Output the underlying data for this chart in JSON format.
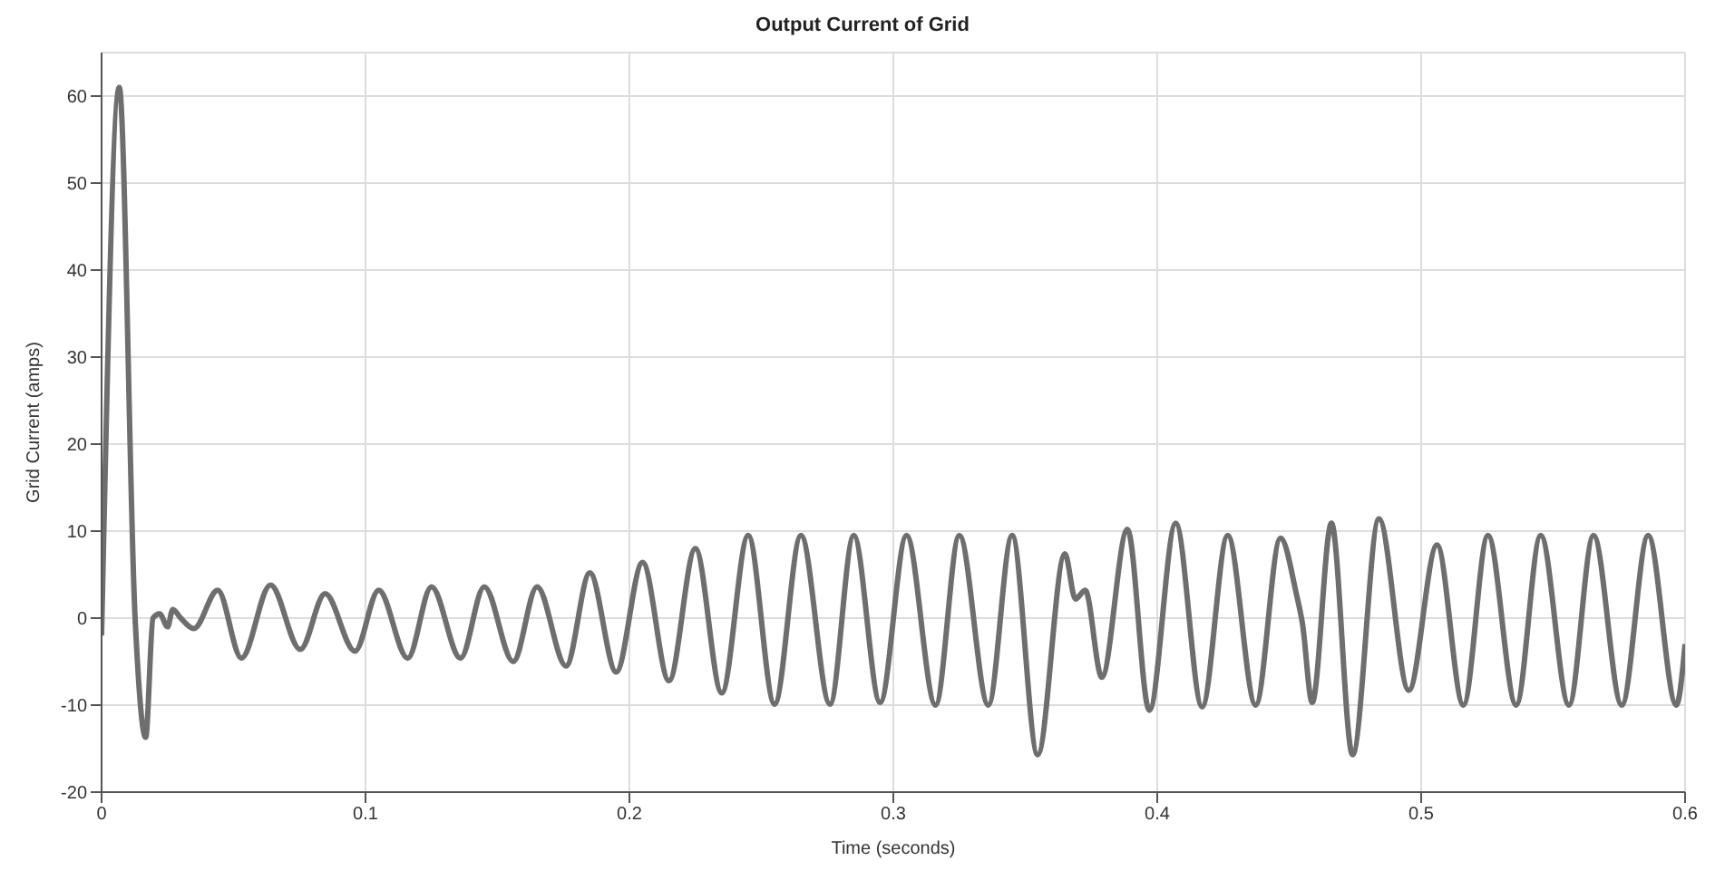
{
  "chart_data": {
    "type": "line",
    "title": "Output Current of Grid",
    "xlabel": "Time (seconds)",
    "ylabel": "Grid Current (amps)",
    "xlim": [
      0,
      0.6
    ],
    "xticks": [
      0,
      0.1,
      0.2,
      0.3,
      0.4,
      0.5,
      0.6
    ],
    "ylim": [
      -20,
      65
    ],
    "yticks": [
      -20,
      -10,
      0,
      10,
      20,
      30,
      40,
      50,
      60
    ],
    "grid": true,
    "series": [
      {
        "color": "#6e6e6e",
        "x": [
          0,
          0.0067,
          0.0127,
          0.0167,
          0.0195,
          0.022,
          0.025,
          0.027,
          0.03,
          0.035,
          0.044,
          0.053,
          0.064,
          0.0753,
          0.0847,
          0.096,
          0.105,
          0.116,
          0.125,
          0.136,
          0.145,
          0.156,
          0.165,
          0.176,
          0.185,
          0.195,
          0.205,
          0.215,
          0.225,
          0.235,
          0.245,
          0.255,
          0.265,
          0.276,
          0.285,
          0.295,
          0.305,
          0.316,
          0.325,
          0.336,
          0.345,
          0.3547,
          0.365,
          0.369,
          0.3727,
          0.379,
          0.3887,
          0.397,
          0.407,
          0.417,
          0.4267,
          0.4373,
          0.4467,
          0.4527,
          0.455,
          0.4587,
          0.466,
          0.474,
          0.484,
          0.4953,
          0.506,
          0.516,
          0.5253,
          0.536,
          0.5453,
          0.556,
          0.5653,
          0.576,
          0.586,
          0.5967,
          0.6
        ],
        "values": [
          -2,
          61,
          0,
          -13.7,
          0,
          0.5,
          -1,
          1,
          0,
          -1.2,
          3.2,
          -4.6,
          3.8,
          -3.6,
          2.8,
          -3.8,
          3.2,
          -4.6,
          3.6,
          -4.6,
          3.6,
          -5,
          3.6,
          -5.5,
          5.2,
          -6.2,
          6.4,
          -7.2,
          8,
          -8.6,
          9.5,
          -9.9,
          9.5,
          -9.9,
          9.5,
          -9.7,
          9.5,
          -10,
          9.5,
          -10,
          9.5,
          -15.7,
          7.4,
          2.2,
          3.2,
          -6.8,
          10.2,
          -10.6,
          10.9,
          -10.2,
          9.5,
          -10,
          9.2,
          2.8,
          -0.6,
          -9.7,
          10.9,
          -15.7,
          11.4,
          -8.3,
          8.4,
          -10,
          9.5,
          -10,
          9.5,
          -10,
          9.5,
          -10,
          9.5,
          -10,
          -3
        ]
      }
    ]
  }
}
